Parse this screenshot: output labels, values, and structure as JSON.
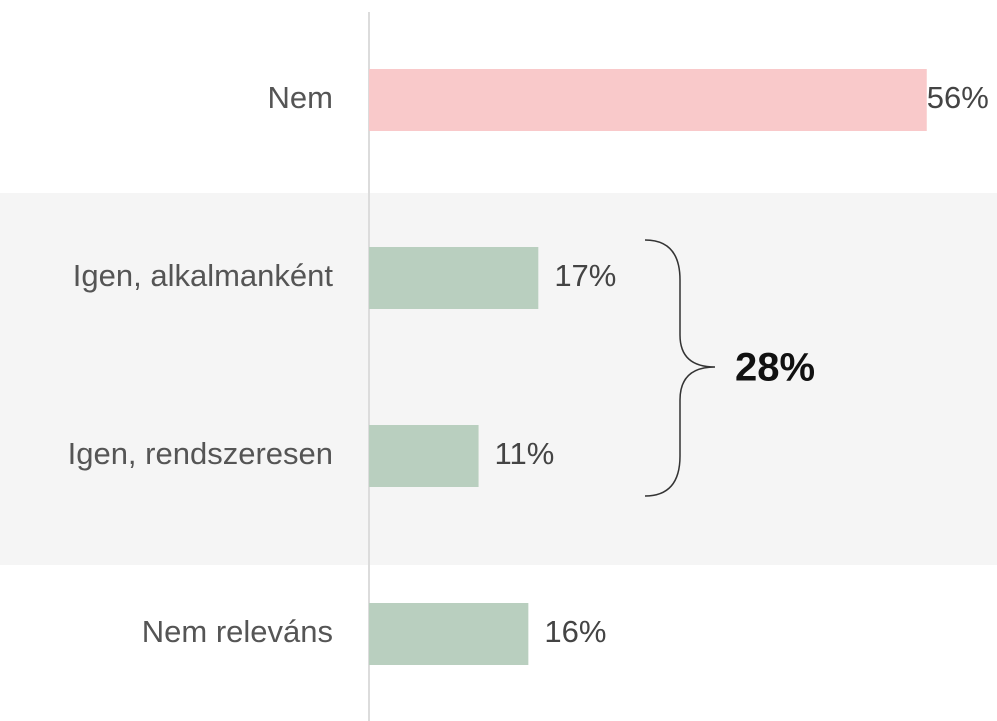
{
  "chart_data": {
    "type": "bar",
    "orientation": "horizontal",
    "categories": [
      "Nem",
      "Igen, alkalmanként",
      "Igen, rendszeresen",
      "Nem releváns"
    ],
    "values": [
      56,
      17,
      11,
      16
    ],
    "value_labels": [
      "56%",
      "17%",
      "11%",
      "16%"
    ],
    "colors": [
      "#f9c9ca",
      "#b9cfbf",
      "#b9cfbf",
      "#b9cfbf"
    ],
    "annotation": "28%"
  }
}
